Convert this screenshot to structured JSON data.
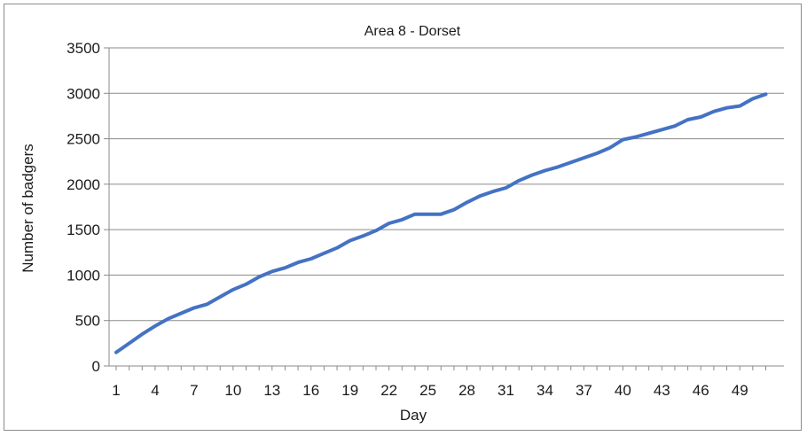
{
  "chart_data": {
    "type": "line",
    "title": "Area 8 - Dorset",
    "xlabel": "Day",
    "ylabel": "Number of badgers",
    "ylim": [
      0,
      3500
    ],
    "yticks": [
      0,
      500,
      1000,
      1500,
      2000,
      2500,
      3000,
      3500
    ],
    "xlim": [
      1,
      51
    ],
    "xtick_labels": [
      "1",
      "4",
      "7",
      "10",
      "13",
      "16",
      "19",
      "22",
      "25",
      "28",
      "31",
      "34",
      "37",
      "40",
      "43",
      "46",
      "49"
    ],
    "grid": "horizontal",
    "line_color": "#4472C4",
    "series": [
      {
        "x": [
          1,
          2,
          3,
          4,
          5,
          6,
          7,
          8,
          9,
          10,
          11,
          12,
          13,
          14,
          15,
          16,
          17,
          18,
          19,
          20,
          21,
          22,
          23,
          24,
          25,
          26,
          27,
          28,
          29,
          30,
          31,
          32,
          33,
          34,
          35,
          36,
          37,
          38,
          39,
          40,
          41,
          42,
          43,
          44,
          45,
          46,
          47,
          48,
          49,
          50,
          51
        ],
        "values": [
          150,
          250,
          350,
          440,
          520,
          580,
          640,
          680,
          760,
          840,
          900,
          980,
          1040,
          1080,
          1140,
          1180,
          1240,
          1300,
          1380,
          1430,
          1490,
          1570,
          1610,
          1670,
          1670,
          1670,
          1720,
          1800,
          1870,
          1920,
          1960,
          2040,
          2100,
          2150,
          2190,
          2240,
          2290,
          2340,
          2400,
          2490,
          2520,
          2560,
          2600,
          2640,
          2710,
          2740,
          2800,
          2840,
          2860,
          2940,
          2990
        ]
      }
    ]
  }
}
